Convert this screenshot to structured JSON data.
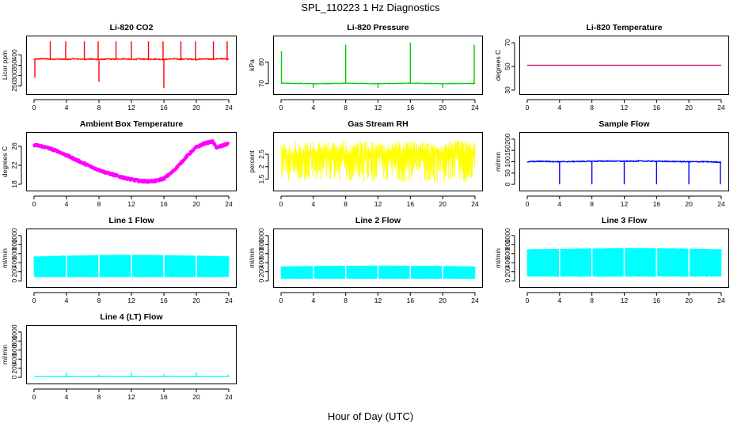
{
  "figure": {
    "title": "SPL_110223  1 Hz Diagnostics",
    "xlabel": "Hour of Day (UTC)"
  },
  "chart_data": [
    {
      "type": "line",
      "title": "Li-820 CO2",
      "ylabel": "Licor ppm",
      "color": "#ff0000",
      "xlim": [
        0,
        24
      ],
      "xticks": [
        0,
        4,
        8,
        12,
        16,
        20,
        24
      ],
      "ylim": [
        230,
        470
      ],
      "yticks": [
        250,
        300,
        350,
        400
      ],
      "series": [
        {
          "x": [
            0,
            1,
            2,
            3,
            4,
            5,
            6,
            7,
            8,
            9,
            10,
            11,
            12,
            13,
            14,
            15,
            16,
            17,
            18,
            19,
            20,
            21,
            22,
            23,
            24
          ],
          "y": [
            378,
            382,
            379,
            380,
            378,
            381,
            379,
            380,
            378,
            380,
            379,
            381,
            378,
            380,
            379,
            380,
            378,
            381,
            379,
            380,
            378,
            381,
            379,
            382,
            378
          ]
        }
      ],
      "spikes": [
        {
          "x": 0.1,
          "y": 290
        },
        {
          "x": 2.0,
          "y": 465
        },
        {
          "x": 3.9,
          "y": 465
        },
        {
          "x": 6.2,
          "y": 465
        },
        {
          "x": 7.9,
          "y": 465
        },
        {
          "x": 8.0,
          "y": 270
        },
        {
          "x": 10.1,
          "y": 465
        },
        {
          "x": 12.0,
          "y": 465
        },
        {
          "x": 14.1,
          "y": 465
        },
        {
          "x": 15.9,
          "y": 465
        },
        {
          "x": 16.0,
          "y": 240
        },
        {
          "x": 18.1,
          "y": 465
        },
        {
          "x": 19.9,
          "y": 465
        },
        {
          "x": 22.1,
          "y": 465
        },
        {
          "x": 23.8,
          "y": 465
        }
      ]
    },
    {
      "type": "line",
      "title": "Li-820 Pressure",
      "ylabel": "kPa",
      "color": "#00cc00",
      "xlim": [
        0,
        24
      ],
      "xticks": [
        0,
        4,
        8,
        12,
        16,
        20,
        24
      ],
      "ylim": [
        67,
        90
      ],
      "yticks": [
        70,
        80
      ],
      "series": [
        {
          "x": [
            0,
            2,
            4,
            6,
            8,
            10,
            12,
            14,
            16,
            18,
            20,
            22,
            24
          ],
          "y": [
            70.2,
            70.1,
            70.0,
            70.1,
            70.2,
            70.1,
            70.0,
            70.1,
            70.2,
            70.1,
            70.0,
            70.1,
            70.1
          ]
        }
      ],
      "spikes": [
        {
          "x": 0.05,
          "y": 85
        },
        {
          "x": 4.0,
          "y": 68
        },
        {
          "x": 8.0,
          "y": 88
        },
        {
          "x": 12.0,
          "y": 68
        },
        {
          "x": 16.0,
          "y": 89
        },
        {
          "x": 20.0,
          "y": 68
        },
        {
          "x": 23.9,
          "y": 88
        }
      ]
    },
    {
      "type": "line",
      "title": "Li-820 Temperature",
      "ylabel": "degrees C",
      "color": "#cc0066",
      "xlim": [
        0,
        24
      ],
      "xticks": [
        0,
        4,
        8,
        12,
        16,
        20,
        24
      ],
      "ylim": [
        30,
        72
      ],
      "yticks": [
        30,
        50,
        70
      ],
      "series": [
        {
          "x": [
            0,
            24
          ],
          "y": [
            51,
            51
          ]
        }
      ]
    },
    {
      "type": "line",
      "title": "Ambient Box Temperature",
      "ylabel": "degrees C",
      "color": "#ff00ff",
      "xlim": [
        0,
        24
      ],
      "xticks": [
        0,
        4,
        8,
        12,
        16,
        20,
        24
      ],
      "ylim": [
        17.5,
        28
      ],
      "yticks": [
        18,
        22,
        26
      ],
      "series": [
        {
          "x": [
            0,
            1,
            2,
            3,
            4,
            5,
            6,
            7,
            8,
            9,
            10,
            11,
            12,
            13,
            14,
            15,
            16,
            17,
            18,
            19,
            20,
            21,
            22,
            22.5,
            23,
            24
          ],
          "y": [
            26.3,
            26.0,
            25.5,
            24.9,
            24.1,
            23.3,
            22.5,
            21.7,
            21.0,
            20.4,
            19.9,
            19.4,
            19.0,
            18.7,
            18.6,
            18.7,
            19.2,
            20.5,
            22.3,
            24.2,
            25.8,
            26.6,
            27.0,
            25.7,
            26.0,
            26.6
          ]
        }
      ]
    },
    {
      "type": "area",
      "title": "Gas Stream RH",
      "ylabel": "percent",
      "color": "#ffff00",
      "xlim": [
        0,
        24
      ],
      "xticks": [
        0,
        4,
        8,
        12,
        16,
        20,
        24
      ],
      "ylim": [
        1.2,
        3.2
      ],
      "yticks": [
        1.5,
        2.0,
        2.5
      ],
      "band": {
        "x": [
          0,
          24
        ],
        "upper": [
          3.0,
          3.05
        ],
        "lower": [
          1.4,
          1.35
        ]
      }
    },
    {
      "type": "line",
      "title": "Sample Flow",
      "ylabel": "ml/min",
      "color": "#0000ff",
      "xlim": [
        0,
        24
      ],
      "xticks": [
        0,
        4,
        8,
        12,
        16,
        20,
        24
      ],
      "ylim": [
        -10,
        210
      ],
      "yticks": [
        0,
        50,
        100,
        150,
        200
      ],
      "series": [
        {
          "x": [
            0,
            2,
            4,
            6,
            8,
            10,
            12,
            14,
            16,
            18,
            20,
            22,
            24
          ],
          "y": [
            100,
            102,
            100,
            101,
            102,
            103,
            102,
            103,
            102,
            101,
            100,
            100,
            98
          ]
        }
      ],
      "spikes": [
        {
          "x": 4.0,
          "y": 0
        },
        {
          "x": 8.0,
          "y": 0
        },
        {
          "x": 12.0,
          "y": 0
        },
        {
          "x": 16.0,
          "y": 0
        },
        {
          "x": 20.0,
          "y": 0
        },
        {
          "x": 23.9,
          "y": 0
        }
      ]
    },
    {
      "type": "area",
      "title": "Line 1 Flow",
      "ylabel": "ml/min",
      "color": "#00ffff",
      "xlim": [
        0,
        24
      ],
      "xticks": [
        0,
        4,
        8,
        12,
        16,
        20,
        24
      ],
      "ylim": [
        -50,
        1050
      ],
      "yticks": [
        0,
        200,
        400,
        600,
        800,
        1000
      ],
      "band": {
        "x": [
          0,
          4,
          8,
          12,
          16,
          20,
          24
        ],
        "upper": [
          540,
          560,
          575,
          580,
          575,
          560,
          545
        ],
        "lower": [
          80,
          80,
          80,
          80,
          80,
          80,
          80
        ]
      },
      "gaps": [
        4,
        8,
        12,
        16,
        20
      ]
    },
    {
      "type": "area",
      "title": "Line 2 Flow",
      "ylabel": "ml/min",
      "color": "#00ffff",
      "xlim": [
        0,
        24
      ],
      "xticks": [
        0,
        4,
        8,
        12,
        16,
        20,
        24
      ],
      "ylim": [
        -50,
        1050
      ],
      "yticks": [
        0,
        200,
        400,
        600,
        800,
        1000
      ],
      "band": {
        "x": [
          0,
          4,
          8,
          12,
          16,
          20,
          24
        ],
        "upper": [
          320,
          330,
          335,
          340,
          335,
          330,
          320
        ],
        "lower": [
          40,
          40,
          40,
          40,
          40,
          40,
          40
        ]
      },
      "gaps": [
        4,
        8,
        12,
        16,
        20
      ]
    },
    {
      "type": "area",
      "title": "Line 3 Flow",
      "ylabel": "ml/min",
      "color": "#00ffff",
      "xlim": [
        0,
        24
      ],
      "xticks": [
        0,
        4,
        8,
        12,
        16,
        20,
        24
      ],
      "ylim": [
        -50,
        1050
      ],
      "yticks": [
        0,
        200,
        400,
        600,
        800,
        1000
      ],
      "band": {
        "x": [
          0,
          4,
          8,
          12,
          16,
          20,
          24
        ],
        "upper": [
          700,
          710,
          720,
          730,
          725,
          715,
          700
        ],
        "lower": [
          90,
          90,
          90,
          90,
          90,
          90,
          90
        ]
      },
      "gaps": [
        4,
        8,
        12,
        16,
        20
      ]
    },
    {
      "type": "line",
      "title": "Line 4 (LT) Flow",
      "ylabel": "ml/min",
      "color": "#00ffff",
      "xlim": [
        0,
        24
      ],
      "xticks": [
        0,
        4,
        8,
        12,
        16,
        20,
        24
      ],
      "ylim": [
        -50,
        1050
      ],
      "yticks": [
        0,
        200,
        400,
        600,
        800,
        1000
      ],
      "series": [
        {
          "x": [
            0,
            24
          ],
          "y": [
            15,
            15
          ]
        }
      ],
      "spikes": [
        {
          "x": 4.0,
          "y": 110
        },
        {
          "x": 8.0,
          "y": 60
        },
        {
          "x": 12.0,
          "y": 110
        },
        {
          "x": 16.0,
          "y": 70
        },
        {
          "x": 20.0,
          "y": 110
        },
        {
          "x": 23.9,
          "y": 60
        }
      ]
    }
  ]
}
